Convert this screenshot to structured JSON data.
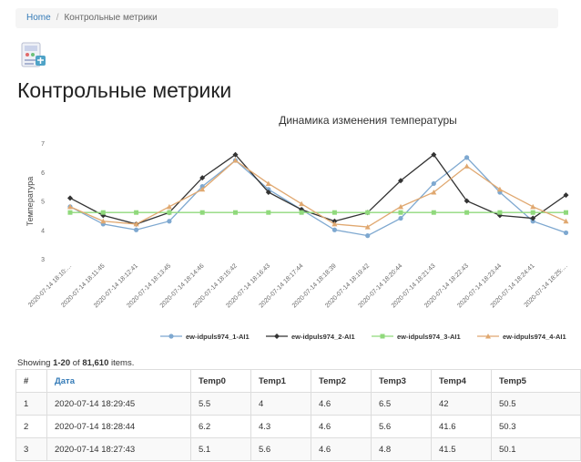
{
  "breadcrumb": {
    "home": "Home",
    "separator": "/",
    "current": "Контрольные метрики"
  },
  "page": {
    "title": "Контрольные метрики",
    "logo_icon": "monitor-device-icon"
  },
  "chart_data": {
    "type": "line",
    "title": "Динамика изменения температуры",
    "ylabel": "Температура",
    "xlabel": "",
    "ylim": [
      3,
      7
    ],
    "yticks": [
      "3",
      "4",
      "5",
      "6",
      "7"
    ],
    "grid": false,
    "legend_position": "bottom",
    "categories": [
      "2020-07-14 18:10:…",
      "2020-07-14 18:11:45",
      "2020-07-14 18:12:41",
      "2020-07-14 18:13:45",
      "2020-07-14 18:14:46",
      "2020-07-14 18:15:42",
      "2020-07-14 18:16:43",
      "2020-07-14 18:17:44",
      "2020-07-14 18:18:39",
      "2020-07-14 18:19:42",
      "2020-07-14 18:20:44",
      "2020-07-14 18:21:43",
      "2020-07-14 18:22:43",
      "2020-07-14 18:23:44",
      "2020-07-14 18:24:41",
      "2020-07-14 18:25:…"
    ],
    "series": [
      {
        "name": "ew-idpuls974_1-AI1",
        "color": "#7ea8d0",
        "marker": "circle",
        "values": [
          4.8,
          4.2,
          4.0,
          4.3,
          5.5,
          6.4,
          5.4,
          4.7,
          4.0,
          3.8,
          4.4,
          5.6,
          6.5,
          5.3,
          4.3,
          3.9
        ]
      },
      {
        "name": "ew-idpuls974_2-AI1",
        "color": "#333333",
        "marker": "diamond",
        "values": [
          5.1,
          4.5,
          4.2,
          4.6,
          5.8,
          6.6,
          5.3,
          4.7,
          4.3,
          4.6,
          5.7,
          6.6,
          5.0,
          4.5,
          4.4,
          5.2
        ]
      },
      {
        "name": "ew-idpuls974_3-AI1",
        "color": "#90d97c",
        "marker": "square",
        "values": [
          4.6,
          4.6,
          4.6,
          4.6,
          4.6,
          4.6,
          4.6,
          4.6,
          4.6,
          4.6,
          4.6,
          4.6,
          4.6,
          4.6,
          4.6,
          4.6
        ]
      },
      {
        "name": "ew-idpuls974_4-AI1",
        "color": "#e0a870",
        "marker": "triangle",
        "values": [
          4.8,
          4.3,
          4.2,
          4.8,
          5.4,
          6.4,
          5.6,
          4.9,
          4.2,
          4.1,
          4.8,
          5.3,
          6.2,
          5.4,
          4.8,
          4.3
        ]
      }
    ]
  },
  "summary": {
    "prefix": "Showing ",
    "range": "1-20",
    "middle": " of ",
    "total": "81,610",
    "suffix": " items."
  },
  "table": {
    "headers": [
      "#",
      "Дата",
      "Temp0",
      "Temp1",
      "Temp2",
      "Temp3",
      "Temp4",
      "Temp5"
    ],
    "rows": [
      [
        "1",
        "2020-07-14 18:29:45",
        "5.5",
        "4",
        "4.6",
        "6.5",
        "42",
        "50.5"
      ],
      [
        "2",
        "2020-07-14 18:28:44",
        "6.2",
        "4.3",
        "4.6",
        "5.6",
        "41.6",
        "50.3"
      ],
      [
        "3",
        "2020-07-14 18:27:43",
        "5.1",
        "5.6",
        "4.6",
        "4.8",
        "41.5",
        "50.1"
      ]
    ]
  }
}
